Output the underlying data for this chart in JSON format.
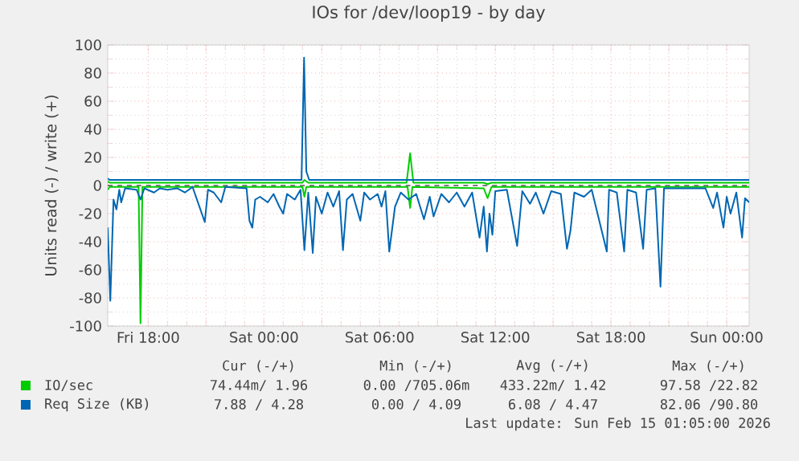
{
  "chart_data": {
    "type": "line",
    "title": "IOs for /dev/loop19 - by day",
    "ylabel": "Units read (-) / write (+)",
    "xlim": [
      "2026-02-13T15:54",
      "2026-02-15T01:10"
    ],
    "ylim": [
      -100,
      100
    ],
    "xticks": [
      {
        "value": "2026-02-13T18:00",
        "label": "Fri 18:00"
      },
      {
        "value": "2026-02-13T21:00",
        "label": null
      },
      {
        "value": "2026-02-14T00:00",
        "label": "Sat 00:00"
      },
      {
        "value": "2026-02-14T03:00",
        "label": null
      },
      {
        "value": "2026-02-14T06:00",
        "label": "Sat 06:00"
      },
      {
        "value": "2026-02-14T09:00",
        "label": null
      },
      {
        "value": "2026-02-14T12:00",
        "label": "Sat 12:00"
      },
      {
        "value": "2026-02-14T15:00",
        "label": null
      },
      {
        "value": "2026-02-14T18:00",
        "label": "Sat 18:00"
      },
      {
        "value": "2026-02-14T21:00",
        "label": null
      },
      {
        "value": "2026-02-15T00:00",
        "label": "Sun 00:00"
      }
    ],
    "yticks": [
      -100,
      -80,
      -60,
      -40,
      -20,
      0,
      20,
      40,
      60,
      80,
      100
    ],
    "grid": true,
    "legend": "bottom",
    "marker": "none",
    "line_style": "solid",
    "ref_lines": [
      {
        "axis": "y",
        "value": 0,
        "color": "#000000",
        "line_style": "dashed"
      }
    ],
    "series": [
      {
        "name": "IO/sec",
        "color": "#00cc00",
        "x": [
          "2026-02-13T15:54",
          "2026-02-13T16:00",
          "2026-02-13T20:00",
          "2026-02-14T01:00",
          "2026-02-14T02:00",
          "2026-02-14T02:06",
          "2026-02-14T02:18",
          "2026-02-14T07:24",
          "2026-02-14T07:35",
          "2026-02-14T07:45",
          "2026-02-14T11:24",
          "2026-02-14T11:36",
          "2026-02-14T11:48",
          "2026-02-15T01:10"
        ],
        "values": [
          3,
          2,
          2,
          2,
          2,
          4,
          2,
          2,
          23,
          2,
          2,
          1,
          2,
          2
        ]
      },
      {
        "name": "Req Size (KB)",
        "color": "#0066b3",
        "x": [
          "2026-02-13T15:54",
          "2026-02-13T16:00",
          "2026-02-14T01:57",
          "2026-02-14T02:05",
          "2026-02-14T02:12",
          "2026-02-14T02:21",
          "2026-02-15T01:10"
        ],
        "values": [
          5,
          4,
          4,
          91,
          10,
          4,
          4
        ]
      },
      {
        "color": "#00cc00",
        "x": [
          "2026-02-13T15:54",
          "2026-02-13T16:00",
          "2026-02-13T17:30",
          "2026-02-13T17:36",
          "2026-02-13T17:42",
          "2026-02-13T20:00",
          "2026-02-14T02:00",
          "2026-02-14T02:06",
          "2026-02-14T02:12",
          "2026-02-14T07:27",
          "2026-02-14T07:35",
          "2026-02-14T07:42",
          "2026-02-14T11:24",
          "2026-02-14T11:36",
          "2026-02-14T11:48",
          "2026-02-15T01:10"
        ],
        "values": [
          -3,
          -1,
          -1,
          -98,
          -1,
          -1,
          -1,
          -8,
          -1,
          -1,
          -16,
          -1,
          -2,
          -9,
          -1,
          -1
        ]
      },
      {
        "color": "#0066b3",
        "x": [
          "2026-02-13T15:54",
          "2026-02-13T16:02",
          "2026-02-13T16:12",
          "2026-02-13T16:21",
          "2026-02-13T16:30",
          "2026-02-13T16:36",
          "2026-02-13T16:48",
          "2026-02-13T17:24",
          "2026-02-13T17:36",
          "2026-02-13T17:48",
          "2026-02-13T18:18",
          "2026-02-13T18:36",
          "2026-02-13T19:00",
          "2026-02-13T19:30",
          "2026-02-13T19:54",
          "2026-02-13T20:18",
          "2026-02-13T20:56",
          "2026-02-13T21:06",
          "2026-02-13T21:24",
          "2026-02-13T21:47",
          "2026-02-13T22:00",
          "2026-02-13T23:06",
          "2026-02-13T23:15",
          "2026-02-13T23:24",
          "2026-02-13T23:33",
          "2026-02-13T23:48",
          "2026-02-14T00:12",
          "2026-02-14T00:30",
          "2026-02-14T00:48",
          "2026-02-14T01:00",
          "2026-02-14T01:12",
          "2026-02-14T01:36",
          "2026-02-14T01:54",
          "2026-02-14T02:06",
          "2026-02-14T02:18",
          "2026-02-14T02:32",
          "2026-02-14T02:42",
          "2026-02-14T03:00",
          "2026-02-14T03:18",
          "2026-02-14T03:36",
          "2026-02-14T03:54",
          "2026-02-14T04:06",
          "2026-02-14T04:18",
          "2026-02-14T04:36",
          "2026-02-14T05:00",
          "2026-02-14T05:12",
          "2026-02-14T05:30",
          "2026-02-14T05:54",
          "2026-02-14T06:06",
          "2026-02-14T06:18",
          "2026-02-14T06:30",
          "2026-02-14T06:48",
          "2026-02-14T07:06",
          "2026-02-14T07:30",
          "2026-02-14T07:54",
          "2026-02-14T08:18",
          "2026-02-14T08:36",
          "2026-02-14T08:48",
          "2026-02-14T09:12",
          "2026-02-14T09:36",
          "2026-02-14T10:00",
          "2026-02-14T10:24",
          "2026-02-14T10:48",
          "2026-02-14T11:11",
          "2026-02-14T11:24",
          "2026-02-14T11:34",
          "2026-02-14T11:42",
          "2026-02-14T11:51",
          "2026-02-14T12:00",
          "2026-02-14T12:36",
          "2026-02-14T13:08",
          "2026-02-14T13:24",
          "2026-02-14T13:48",
          "2026-02-14T14:06",
          "2026-02-14T14:30",
          "2026-02-14T14:54",
          "2026-02-14T15:24",
          "2026-02-14T15:43",
          "2026-02-14T15:54",
          "2026-02-14T16:06",
          "2026-02-14T16:36",
          "2026-02-14T17:00",
          "2026-02-14T17:47",
          "2026-02-14T17:54",
          "2026-02-14T18:18",
          "2026-02-14T18:41",
          "2026-02-14T18:51",
          "2026-02-14T19:18",
          "2026-02-14T19:40",
          "2026-02-14T19:51",
          "2026-02-14T20:18",
          "2026-02-14T20:34",
          "2026-02-14T20:45",
          "2026-02-14T22:54",
          "2026-02-14T23:18",
          "2026-02-14T23:30",
          "2026-02-14T23:50",
          "2026-02-15T00:00",
          "2026-02-15T00:12",
          "2026-02-15T00:30",
          "2026-02-15T00:48",
          "2026-02-15T00:57",
          "2026-02-15T01:10"
        ],
        "values": [
          -30,
          -82,
          -10,
          -17,
          -3,
          -12,
          -2,
          -3,
          -10,
          -2,
          -5,
          -2,
          -3,
          -2,
          -5,
          -1,
          -26,
          -3,
          -5,
          -12,
          -1,
          -2,
          -25,
          -30,
          -10,
          -8,
          -12,
          -6,
          -15,
          -20,
          -6,
          -10,
          -3,
          -46,
          -5,
          -48,
          -8,
          -20,
          -5,
          -15,
          -4,
          -46,
          -10,
          -6,
          -25,
          -5,
          -10,
          -6,
          -15,
          -4,
          -47,
          -15,
          -5,
          -10,
          -6,
          -24,
          -8,
          -22,
          -6,
          -12,
          -5,
          -15,
          -5,
          -37,
          -15,
          -47,
          -20,
          -35,
          -4,
          -3,
          -43,
          -4,
          -13,
          -5,
          -20,
          -4,
          -6,
          -45,
          -32,
          -5,
          -8,
          -3,
          -47,
          -3,
          -5,
          -47,
          -3,
          -5,
          -45,
          -3,
          -2,
          -72,
          -2,
          -2,
          -16,
          -5,
          -30,
          -8,
          -20,
          -5,
          -37,
          -9,
          -12
        ]
      }
    ],
    "annotations": [
      "Cur (-/+)",
      "Min (-/+)",
      "Avg (-/+)",
      "Max (-/+)",
      "74.44m/ 1.96",
      "0.00 /705.06m",
      "433.22m/ 1.42",
      "97.58 /22.82",
      "7.88 / 4.28",
      "0.00 / 4.09",
      "6.08 / 4.47",
      "82.06 /90.80",
      "Last update: Sun Feb 15 01:05:00 2026"
    ]
  }
}
